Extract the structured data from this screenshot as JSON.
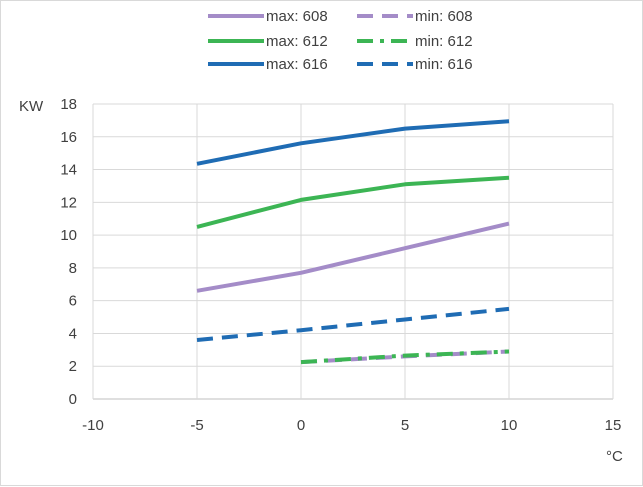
{
  "chart_data": {
    "type": "line",
    "ylabel": "KW",
    "xlabel": "°C",
    "xlim": [
      -10,
      15
    ],
    "ylim": [
      0,
      18
    ],
    "xticks": [
      -10,
      -5,
      0,
      5,
      10,
      15
    ],
    "yticks": [
      0,
      2,
      4,
      6,
      8,
      10,
      12,
      14,
      16,
      18
    ],
    "grid": true,
    "legend_position": "top",
    "series": [
      {
        "name": "max: 608",
        "style": "solid",
        "color": "#a48cc8",
        "x": [
          -5,
          0,
          5,
          10
        ],
        "y": [
          6.6,
          7.7,
          9.2,
          10.7
        ]
      },
      {
        "name": "min: 608",
        "style": "dash",
        "color": "#a48cc8",
        "x": [
          0,
          5,
          10
        ],
        "y": [
          2.25,
          2.6,
          2.9
        ]
      },
      {
        "name": "max: 612",
        "style": "solid",
        "color": "#3cb554",
        "x": [
          -5,
          0,
          5,
          10
        ],
        "y": [
          10.5,
          12.15,
          13.1,
          13.5
        ]
      },
      {
        "name": "min: 612",
        "style": "dash-dot",
        "color": "#3cb554",
        "x": [
          0,
          5,
          10
        ],
        "y": [
          2.25,
          2.65,
          2.9
        ]
      },
      {
        "name": "max: 616",
        "style": "solid",
        "color": "#1f6cb4",
        "x": [
          -5,
          0,
          5,
          10
        ],
        "y": [
          14.35,
          15.6,
          16.5,
          16.95
        ]
      },
      {
        "name": "min: 616",
        "style": "dash",
        "color": "#1f6cb4",
        "x": [
          -5,
          0,
          5,
          10
        ],
        "y": [
          3.6,
          4.2,
          4.85,
          5.5
        ]
      }
    ]
  }
}
